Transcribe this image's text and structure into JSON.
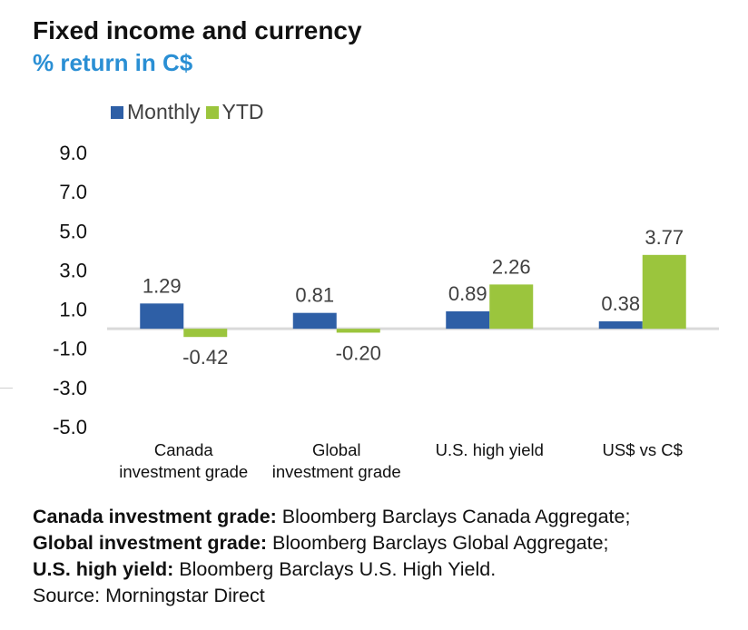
{
  "title": "Fixed income and currency",
  "subtitle": "% return in C$",
  "legend": [
    {
      "name": "Monthly",
      "color": "#2e5fa6"
    },
    {
      "name": "YTD",
      "color": "#9bc53d"
    }
  ],
  "chart_data": {
    "type": "bar",
    "categories": [
      [
        "Canada",
        "investment grade"
      ],
      [
        "Global",
        "investment grade"
      ],
      [
        "U.S. high yield"
      ],
      [
        "US$ vs C$"
      ]
    ],
    "series": [
      {
        "name": "Monthly",
        "color": "#2e5fa6",
        "values": [
          1.29,
          0.81,
          0.89,
          0.38
        ],
        "labels": [
          "1.29",
          "0.81",
          "0.89",
          "0.38"
        ]
      },
      {
        "name": "YTD",
        "color": "#9bc53d",
        "values": [
          -0.42,
          -0.2,
          2.26,
          3.77
        ],
        "labels": [
          "-0.42",
          "-0.20",
          "2.26",
          "3.77"
        ]
      }
    ],
    "yticks": [
      "9.0",
      "7.0",
      "5.0",
      "3.0",
      "1.0",
      "-1.0",
      "-3.0",
      "-5.0"
    ],
    "ylim": [
      -5.0,
      9.0
    ],
    "grid": false,
    "legend_position": "top-left"
  },
  "footnotes": [
    {
      "bold": "Canada investment grade:",
      "text": " Bloomberg Barclays Canada Aggregate;"
    },
    {
      "bold": "Global investment grade:",
      "text": " Bloomberg Barclays Global Aggregate;"
    },
    {
      "bold": "U.S. high yield:",
      "text": " Bloomberg Barclays U.S. High Yield."
    },
    {
      "bold": "",
      "text": "Source: Morningstar Direct"
    }
  ]
}
